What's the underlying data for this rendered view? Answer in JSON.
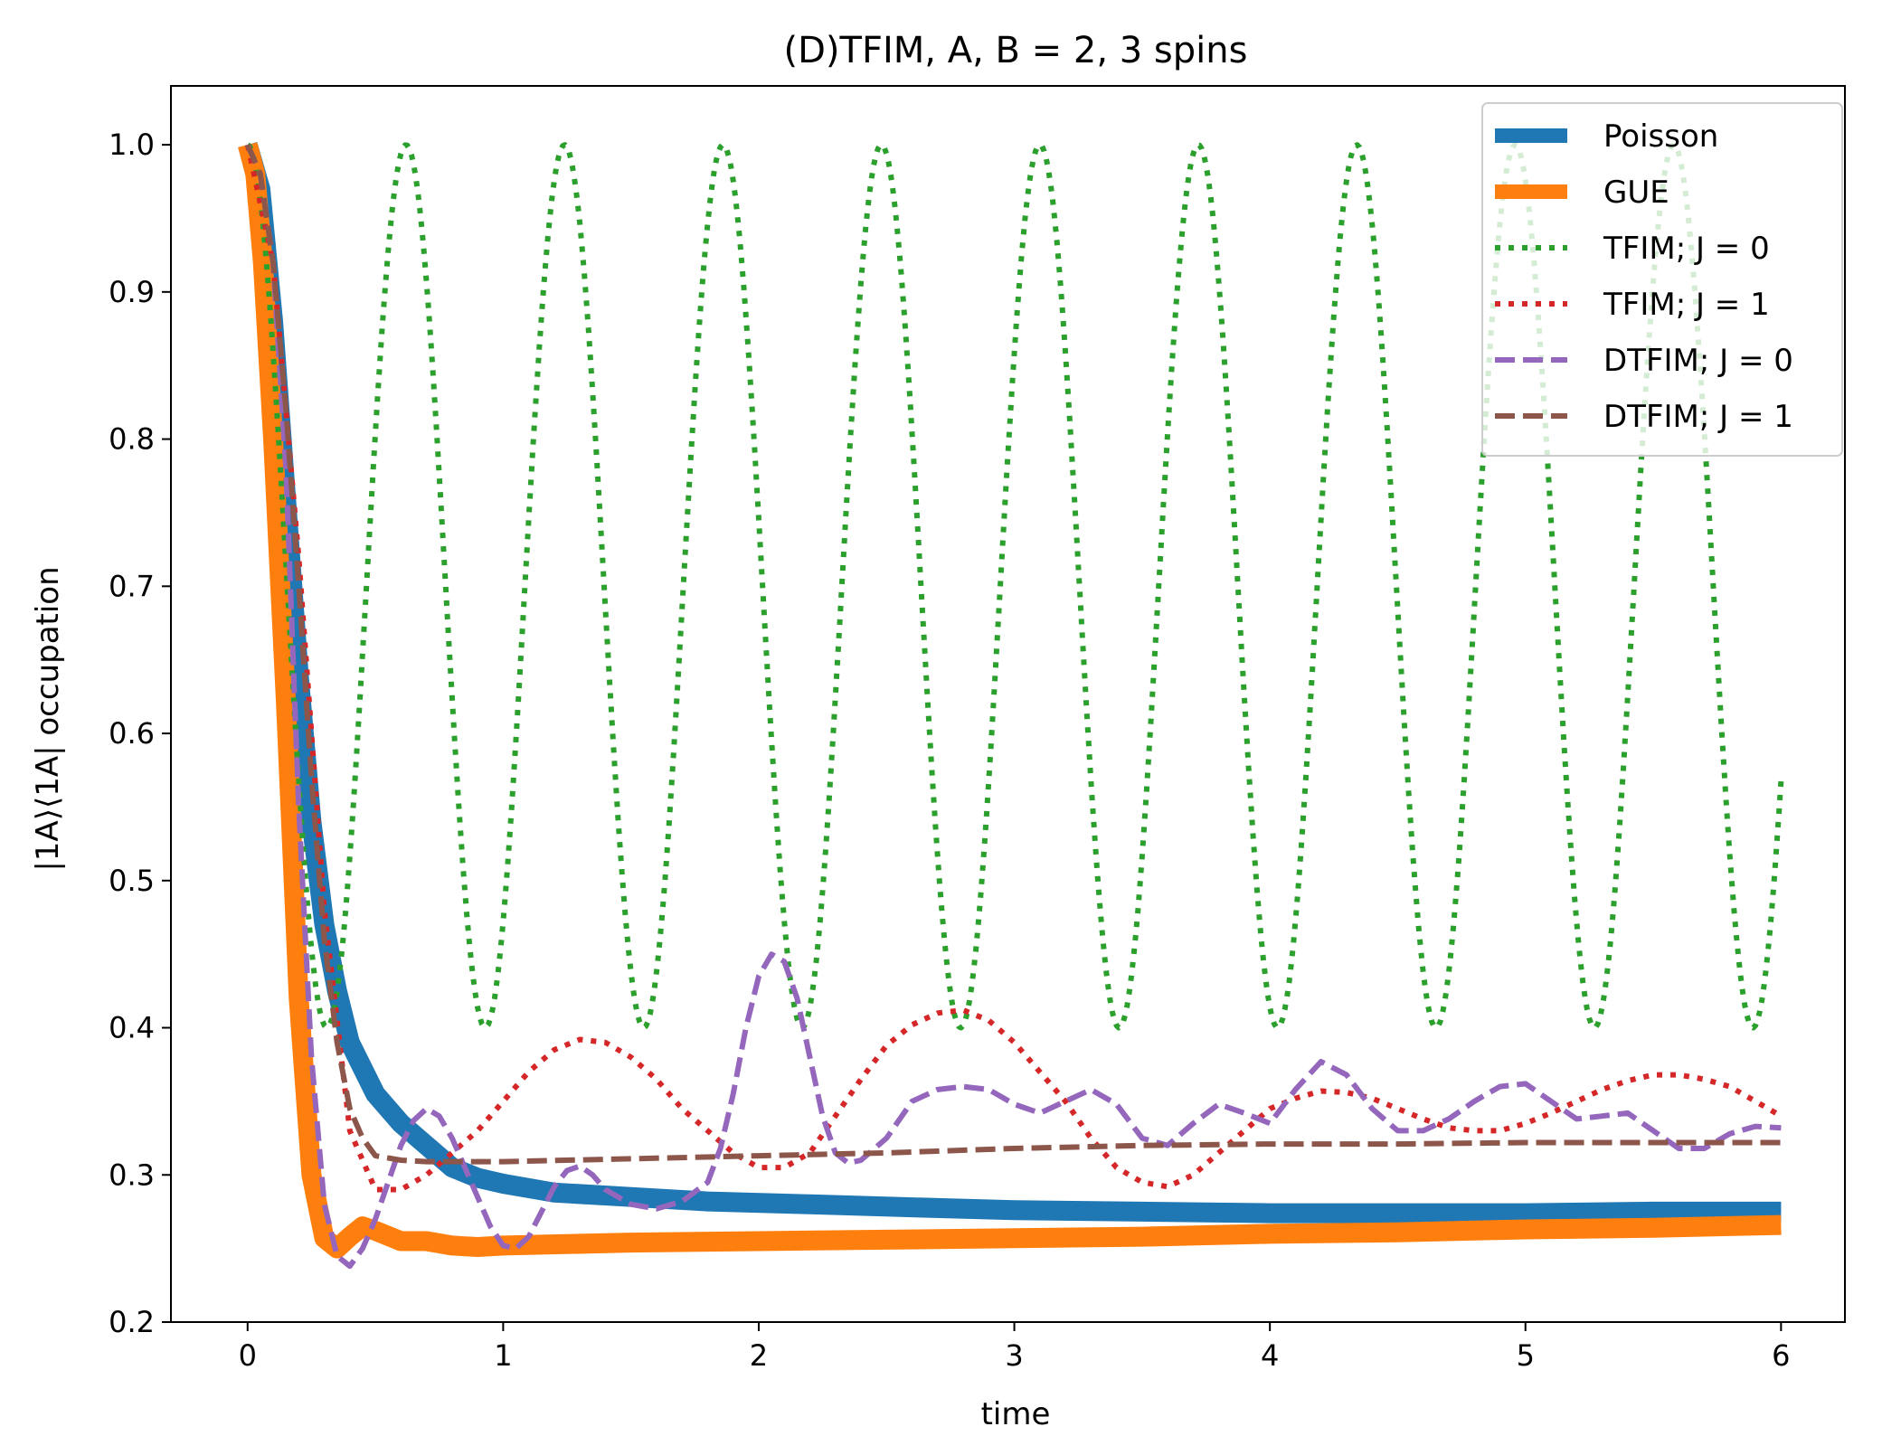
{
  "chart_data": {
    "type": "line",
    "title": "(D)TFIM, A, B = 2, 3 spins",
    "xlabel": "time",
    "ylabel": "|1A⟩⟨1A| occupation",
    "xlim": [
      -0.3,
      6.25
    ],
    "ylim": [
      0.2,
      1.04
    ],
    "xticks": [
      0,
      1,
      2,
      3,
      4,
      5,
      6
    ],
    "xtick_labels": [
      "0",
      "1",
      "2",
      "3",
      "4",
      "5",
      "6"
    ],
    "yticks": [
      0.2,
      0.3,
      0.4,
      0.5,
      0.6,
      0.7,
      0.8,
      0.9,
      1.0
    ],
    "ytick_labels": [
      "0.2",
      "0.3",
      "0.4",
      "0.5",
      "0.6",
      "0.7",
      "0.8",
      "0.9",
      "1.0"
    ],
    "grid": false,
    "legend_position": "top-right",
    "x_range": [
      0,
      6
    ],
    "series": [
      {
        "name": "Poisson",
        "color": "#1f77b4",
        "style": "solid",
        "width": "thick",
        "points": [
          [
            0,
            1.0
          ],
          [
            0.05,
            0.97
          ],
          [
            0.1,
            0.88
          ],
          [
            0.15,
            0.76
          ],
          [
            0.2,
            0.64
          ],
          [
            0.25,
            0.54
          ],
          [
            0.3,
            0.47
          ],
          [
            0.35,
            0.425
          ],
          [
            0.4,
            0.39
          ],
          [
            0.5,
            0.355
          ],
          [
            0.6,
            0.335
          ],
          [
            0.7,
            0.32
          ],
          [
            0.8,
            0.305
          ],
          [
            0.9,
            0.298
          ],
          [
            1.0,
            0.294
          ],
          [
            1.2,
            0.288
          ],
          [
            1.5,
            0.285
          ],
          [
            1.8,
            0.282
          ],
          [
            2.2,
            0.28
          ],
          [
            2.6,
            0.278
          ],
          [
            3.0,
            0.276
          ],
          [
            3.5,
            0.275
          ],
          [
            4.0,
            0.274
          ],
          [
            4.5,
            0.274
          ],
          [
            5.0,
            0.274
          ],
          [
            5.5,
            0.275
          ],
          [
            6.0,
            0.275
          ]
        ]
      },
      {
        "name": "GUE",
        "color": "#ff7f0e",
        "style": "solid",
        "width": "thick",
        "points": [
          [
            0,
            1.0
          ],
          [
            0.03,
            0.98
          ],
          [
            0.06,
            0.92
          ],
          [
            0.1,
            0.8
          ],
          [
            0.15,
            0.62
          ],
          [
            0.2,
            0.42
          ],
          [
            0.25,
            0.3
          ],
          [
            0.3,
            0.257
          ],
          [
            0.35,
            0.25
          ],
          [
            0.4,
            0.258
          ],
          [
            0.45,
            0.265
          ],
          [
            0.5,
            0.262
          ],
          [
            0.6,
            0.255
          ],
          [
            0.7,
            0.255
          ],
          [
            0.8,
            0.252
          ],
          [
            0.9,
            0.251
          ],
          [
            1.0,
            0.252
          ],
          [
            1.5,
            0.254
          ],
          [
            2.0,
            0.255
          ],
          [
            2.5,
            0.256
          ],
          [
            3.0,
            0.257
          ],
          [
            3.5,
            0.258
          ],
          [
            4.0,
            0.26
          ],
          [
            4.5,
            0.261
          ],
          [
            5.0,
            0.263
          ],
          [
            5.5,
            0.264
          ],
          [
            6.0,
            0.266
          ]
        ]
      },
      {
        "name": "TFIM; J = 0",
        "color": "#2ca02c",
        "style": "dotted",
        "formula": "tfim0",
        "center": 0.7,
        "amplitude": 0.3,
        "period": 0.62
      },
      {
        "name": "TFIM; J = 1",
        "color": "#d62728",
        "style": "dotted",
        "points": [
          [
            0,
            1.0
          ],
          [
            0.1,
            0.92
          ],
          [
            0.2,
            0.72
          ],
          [
            0.3,
            0.48
          ],
          [
            0.4,
            0.33
          ],
          [
            0.5,
            0.29
          ],
          [
            0.6,
            0.29
          ],
          [
            0.7,
            0.3
          ],
          [
            0.8,
            0.315
          ],
          [
            0.9,
            0.33
          ],
          [
            1.0,
            0.35
          ],
          [
            1.1,
            0.37
          ],
          [
            1.2,
            0.385
          ],
          [
            1.3,
            0.392
          ],
          [
            1.4,
            0.39
          ],
          [
            1.5,
            0.38
          ],
          [
            1.6,
            0.365
          ],
          [
            1.7,
            0.345
          ],
          [
            1.8,
            0.33
          ],
          [
            1.9,
            0.315
          ],
          [
            2.0,
            0.305
          ],
          [
            2.1,
            0.305
          ],
          [
            2.2,
            0.315
          ],
          [
            2.3,
            0.34
          ],
          [
            2.4,
            0.365
          ],
          [
            2.5,
            0.388
          ],
          [
            2.6,
            0.402
          ],
          [
            2.7,
            0.41
          ],
          [
            2.8,
            0.412
          ],
          [
            2.9,
            0.405
          ],
          [
            3.0,
            0.39
          ],
          [
            3.1,
            0.37
          ],
          [
            3.2,
            0.35
          ],
          [
            3.3,
            0.325
          ],
          [
            3.4,
            0.305
          ],
          [
            3.5,
            0.295
          ],
          [
            3.6,
            0.292
          ],
          [
            3.7,
            0.3
          ],
          [
            3.8,
            0.315
          ],
          [
            3.9,
            0.33
          ],
          [
            4.0,
            0.345
          ],
          [
            4.1,
            0.352
          ],
          [
            4.2,
            0.357
          ],
          [
            4.3,
            0.356
          ],
          [
            4.4,
            0.352
          ],
          [
            4.5,
            0.345
          ],
          [
            4.6,
            0.338
          ],
          [
            4.7,
            0.332
          ],
          [
            4.8,
            0.33
          ],
          [
            4.9,
            0.33
          ],
          [
            5.0,
            0.335
          ],
          [
            5.1,
            0.342
          ],
          [
            5.2,
            0.35
          ],
          [
            5.3,
            0.358
          ],
          [
            5.4,
            0.364
          ],
          [
            5.5,
            0.368
          ],
          [
            5.6,
            0.368
          ],
          [
            5.7,
            0.365
          ],
          [
            5.8,
            0.36
          ],
          [
            5.9,
            0.35
          ],
          [
            6.0,
            0.34
          ]
        ]
      },
      {
        "name": "DTFIM; J = 0",
        "color": "#9467bd",
        "style": "dashed",
        "points": [
          [
            0,
            1.0
          ],
          [
            0.05,
            0.98
          ],
          [
            0.1,
            0.92
          ],
          [
            0.15,
            0.78
          ],
          [
            0.2,
            0.55
          ],
          [
            0.25,
            0.38
          ],
          [
            0.3,
            0.28
          ],
          [
            0.35,
            0.245
          ],
          [
            0.4,
            0.238
          ],
          [
            0.45,
            0.25
          ],
          [
            0.5,
            0.27
          ],
          [
            0.55,
            0.295
          ],
          [
            0.6,
            0.32
          ],
          [
            0.65,
            0.337
          ],
          [
            0.7,
            0.345
          ],
          [
            0.75,
            0.34
          ],
          [
            0.8,
            0.325
          ],
          [
            0.85,
            0.305
          ],
          [
            0.9,
            0.285
          ],
          [
            0.95,
            0.265
          ],
          [
            1.0,
            0.252
          ],
          [
            1.05,
            0.25
          ],
          [
            1.1,
            0.258
          ],
          [
            1.15,
            0.275
          ],
          [
            1.2,
            0.292
          ],
          [
            1.25,
            0.303
          ],
          [
            1.3,
            0.306
          ],
          [
            1.35,
            0.3
          ],
          [
            1.4,
            0.29
          ],
          [
            1.5,
            0.28
          ],
          [
            1.6,
            0.277
          ],
          [
            1.7,
            0.282
          ],
          [
            1.8,
            0.295
          ],
          [
            1.85,
            0.318
          ],
          [
            1.9,
            0.355
          ],
          [
            1.95,
            0.4
          ],
          [
            2.0,
            0.435
          ],
          [
            2.05,
            0.45
          ],
          [
            2.1,
            0.445
          ],
          [
            2.15,
            0.42
          ],
          [
            2.2,
            0.38
          ],
          [
            2.25,
            0.34
          ],
          [
            2.3,
            0.315
          ],
          [
            2.35,
            0.308
          ],
          [
            2.4,
            0.31
          ],
          [
            2.5,
            0.325
          ],
          [
            2.6,
            0.35
          ],
          [
            2.7,
            0.358
          ],
          [
            2.8,
            0.36
          ],
          [
            2.9,
            0.358
          ],
          [
            3.0,
            0.348
          ],
          [
            3.1,
            0.342
          ],
          [
            3.2,
            0.35
          ],
          [
            3.3,
            0.358
          ],
          [
            3.4,
            0.348
          ],
          [
            3.5,
            0.325
          ],
          [
            3.6,
            0.32
          ],
          [
            3.7,
            0.335
          ],
          [
            3.8,
            0.348
          ],
          [
            3.9,
            0.342
          ],
          [
            4.0,
            0.335
          ],
          [
            4.1,
            0.358
          ],
          [
            4.2,
            0.377
          ],
          [
            4.3,
            0.368
          ],
          [
            4.4,
            0.345
          ],
          [
            4.5,
            0.33
          ],
          [
            4.6,
            0.33
          ],
          [
            4.7,
            0.338
          ],
          [
            4.8,
            0.35
          ],
          [
            4.9,
            0.36
          ],
          [
            5.0,
            0.362
          ],
          [
            5.1,
            0.35
          ],
          [
            5.2,
            0.338
          ],
          [
            5.3,
            0.34
          ],
          [
            5.4,
            0.342
          ],
          [
            5.5,
            0.33
          ],
          [
            5.6,
            0.318
          ],
          [
            5.7,
            0.318
          ],
          [
            5.8,
            0.328
          ],
          [
            5.9,
            0.333
          ],
          [
            6.0,
            0.332
          ]
        ]
      },
      {
        "name": "DTFIM; J = 1",
        "color": "#8c564b",
        "style": "dashed",
        "points": [
          [
            0,
            1.0
          ],
          [
            0.05,
            0.98
          ],
          [
            0.1,
            0.92
          ],
          [
            0.15,
            0.82
          ],
          [
            0.2,
            0.7
          ],
          [
            0.25,
            0.57
          ],
          [
            0.3,
            0.46
          ],
          [
            0.35,
            0.39
          ],
          [
            0.4,
            0.345
          ],
          [
            0.45,
            0.325
          ],
          [
            0.5,
            0.313
          ],
          [
            0.6,
            0.31
          ],
          [
            0.7,
            0.309
          ],
          [
            0.8,
            0.309
          ],
          [
            1.0,
            0.309
          ],
          [
            1.5,
            0.311
          ],
          [
            2.0,
            0.313
          ],
          [
            2.5,
            0.315
          ],
          [
            3.0,
            0.318
          ],
          [
            3.5,
            0.32
          ],
          [
            4.0,
            0.321
          ],
          [
            4.5,
            0.321
          ],
          [
            5.0,
            0.322
          ],
          [
            5.5,
            0.322
          ],
          [
            6.0,
            0.322
          ]
        ]
      }
    ]
  }
}
